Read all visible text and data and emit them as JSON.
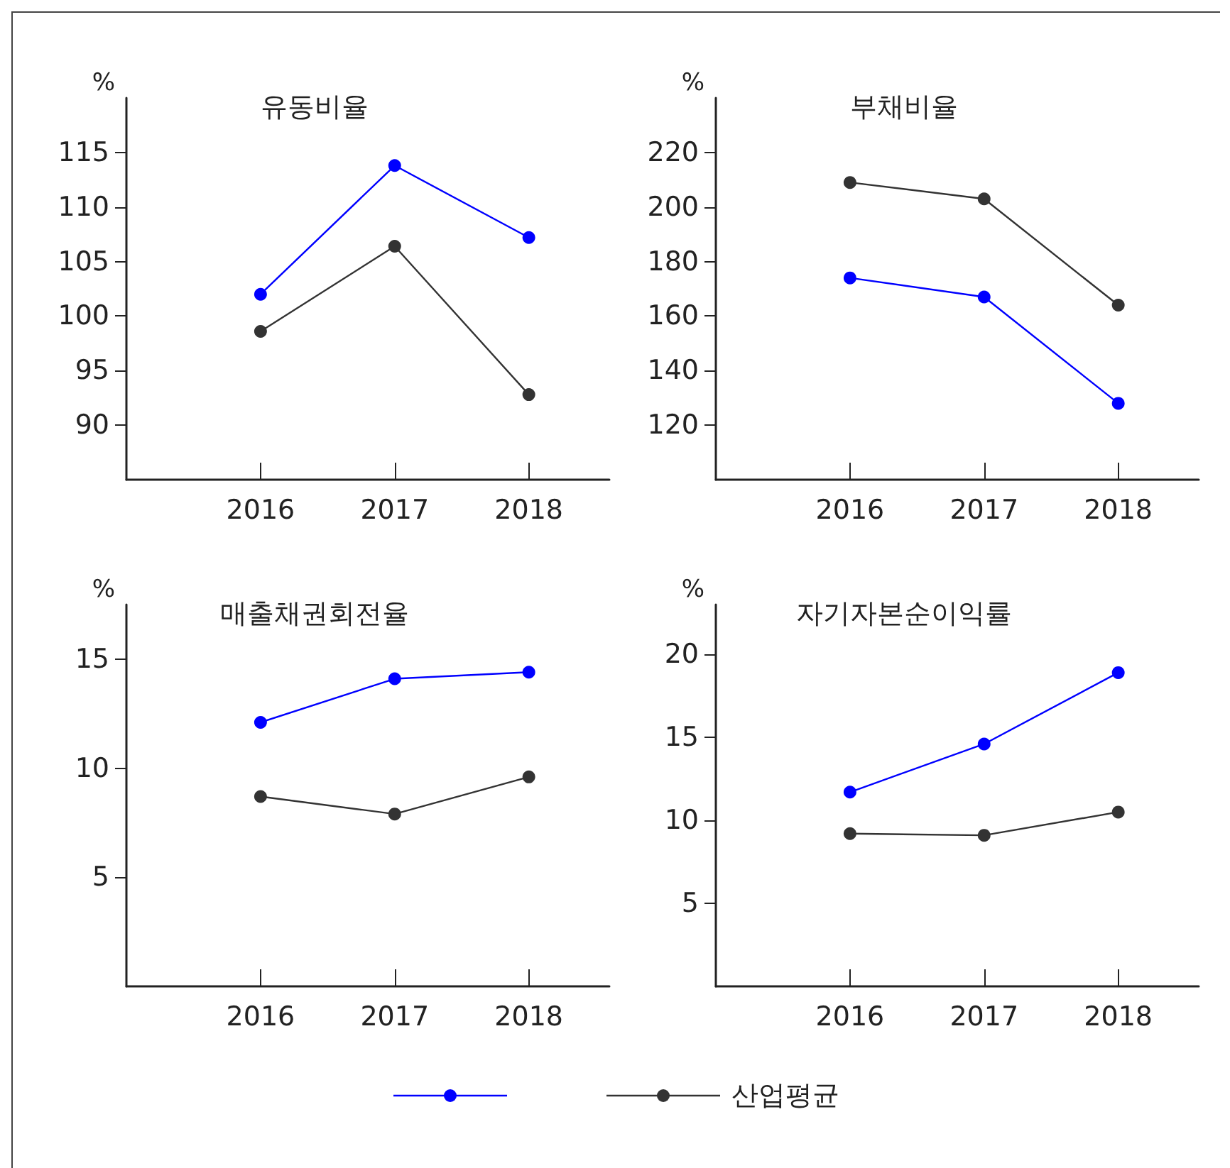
{
  "chart_data": [
    {
      "type": "line",
      "title": "유동비율",
      "ylabel": "%",
      "x": [
        2016,
        2017,
        2018
      ],
      "xlim": [
        2015,
        2018.6
      ],
      "xticks": [
        2016,
        2017,
        2018
      ],
      "ylim": [
        85,
        120
      ],
      "yticks": [
        90,
        95,
        100,
        105,
        110,
        115
      ],
      "grid": false,
      "marker": "circle",
      "line_style": "solid",
      "legend": "bottom",
      "series": [
        {
          "color": "#0000ff",
          "values": [
            102.0,
            113.8,
            107.2
          ]
        },
        {
          "name": "산업평균",
          "color": "#333333",
          "values": [
            98.6,
            106.4,
            92.8
          ]
        }
      ]
    },
    {
      "type": "line",
      "title": "부채비율",
      "ylabel": "%",
      "x": [
        2016,
        2017,
        2018
      ],
      "xlim": [
        2015,
        2018.6
      ],
      "xticks": [
        2016,
        2017,
        2018
      ],
      "ylim": [
        100,
        240
      ],
      "yticks": [
        120,
        140,
        160,
        180,
        200,
        220
      ],
      "grid": false,
      "marker": "circle",
      "line_style": "solid",
      "series": [
        {
          "color": "#0000ff",
          "values": [
            174,
            167,
            128
          ]
        },
        {
          "color": "#333333",
          "values": [
            209,
            203,
            164
          ]
        }
      ]
    },
    {
      "type": "line",
      "title": "매출채권회전율",
      "ylabel": "%",
      "x": [
        2016,
        2017,
        2018
      ],
      "xlim": [
        2015,
        2018.6
      ],
      "xticks": [
        2016,
        2017,
        2018
      ],
      "ylim": [
        0,
        17.5
      ],
      "yticks": [
        5,
        10,
        15
      ],
      "grid": false,
      "marker": "circle",
      "line_style": "solid",
      "series": [
        {
          "color": "#0000ff",
          "values": [
            12.1,
            14.1,
            14.4
          ]
        },
        {
          "color": "#333333",
          "values": [
            8.7,
            7.9,
            9.6
          ]
        }
      ]
    },
    {
      "type": "line",
      "title": "자기자본순이익률",
      "ylabel": "%",
      "x": [
        2016,
        2017,
        2018
      ],
      "xlim": [
        2015,
        2018.6
      ],
      "xticks": [
        2016,
        2017,
        2018
      ],
      "ylim": [
        0,
        23
      ],
      "yticks": [
        5,
        10,
        15,
        20
      ],
      "grid": false,
      "marker": "circle",
      "line_style": "solid",
      "series": [
        {
          "color": "#0000ff",
          "values": [
            11.7,
            14.6,
            18.9
          ]
        },
        {
          "color": "#333333",
          "values": [
            9.2,
            9.1,
            10.5
          ]
        }
      ]
    }
  ]
}
